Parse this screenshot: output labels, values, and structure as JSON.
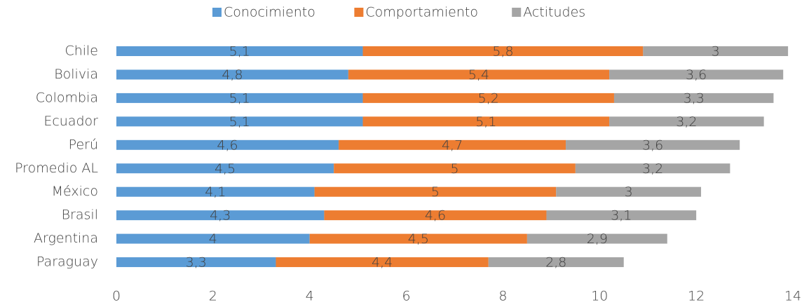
{
  "chart_data": {
    "type": "stacked_bar_horizontal",
    "categories": [
      "Chile",
      "Bolivia",
      "Colombia",
      "Ecuador",
      "Perú",
      "Promedio AL",
      "México",
      "Brasil",
      "Argentina",
      "Paraguay"
    ],
    "series": [
      {
        "name": "Conocimiento",
        "color": "#5b9bd5",
        "values": [
          5.1,
          4.8,
          5.1,
          5.1,
          4.6,
          4.5,
          4.1,
          4.3,
          4,
          3.3
        ],
        "value_labels": [
          "5,1",
          "4,8",
          "5,1",
          "5,1",
          "4,6",
          "4,5",
          "4,1",
          "4,3",
          "4",
          "3,3"
        ]
      },
      {
        "name": "Comportamiento",
        "color": "#ed7d31",
        "values": [
          5.8,
          5.4,
          5.2,
          5.1,
          4.7,
          5,
          5,
          4.6,
          4.5,
          4.4
        ],
        "value_labels": [
          "5,8",
          "5,4",
          "5,2",
          "5,1",
          "4,7",
          "5",
          "5",
          "4,6",
          "4,5",
          "4,4"
        ]
      },
      {
        "name": "Actitudes",
        "color": "#a5a5a5",
        "values": [
          3,
          3.6,
          3.3,
          3.2,
          3.6,
          3.2,
          3,
          3.1,
          2.9,
          2.8
        ],
        "value_labels": [
          "3",
          "3,6",
          "3,3",
          "3,2",
          "3,6",
          "3,2",
          "3",
          "3,1",
          "2,9",
          "2,8"
        ]
      }
    ],
    "xlim": [
      0,
      14
    ],
    "xticks": [
      0,
      2,
      4,
      6,
      8,
      10,
      12,
      14
    ],
    "legend": "top"
  }
}
